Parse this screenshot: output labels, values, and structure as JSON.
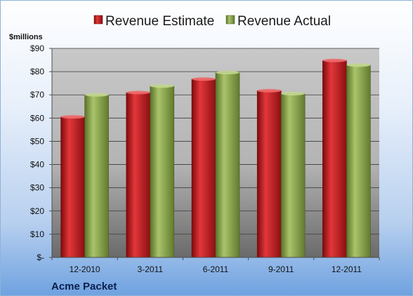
{
  "chart_data": {
    "type": "bar",
    "categories": [
      "12-2010",
      "3-2011",
      "6-2011",
      "9-2011",
      "12-2011"
    ],
    "series": [
      {
        "name": "Revenue Estimate",
        "values": [
          60.5,
          71,
          76.8,
          71.8,
          84.8
        ],
        "color": "#c0181c"
      },
      {
        "name": "Revenue Actual",
        "values": [
          70,
          73.8,
          79.6,
          70.5,
          82.8
        ],
        "color": "#8aa64a"
      }
    ],
    "ylabel": "$millions",
    "ylim": [
      0,
      90
    ],
    "yticks": [
      "$-",
      "$10",
      "$20",
      "$30",
      "$40",
      "$50",
      "$60",
      "$70",
      "$80",
      "$90"
    ],
    "grid": true,
    "legend": "top-center"
  },
  "company_label": "Acme Packet"
}
